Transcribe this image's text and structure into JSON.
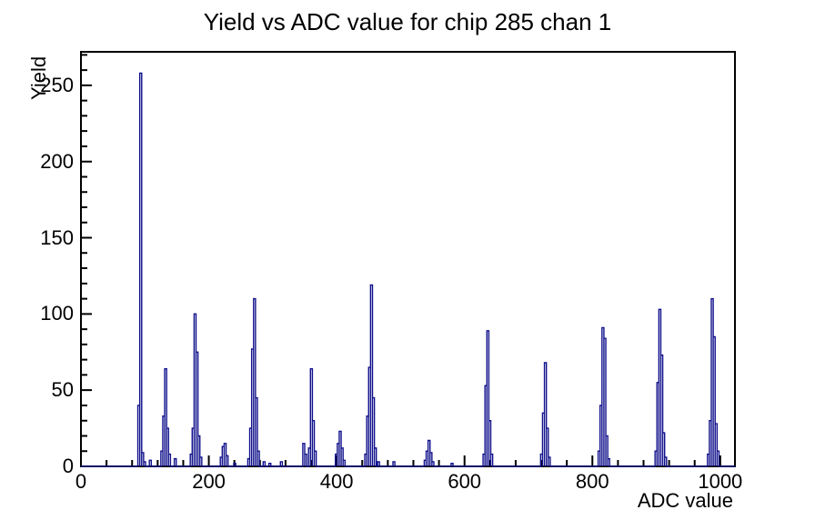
{
  "chart_data": {
    "type": "bar",
    "style": "root-step-histogram",
    "title": "Yield vs ADC value for chip 285 chan 1",
    "xlabel": "ADC value",
    "ylabel": "Yield",
    "xlim": [
      0,
      1023
    ],
    "ylim": [
      0,
      272
    ],
    "grid": false,
    "legend": "none",
    "x_major_ticks": [
      {
        "v": 0,
        "label": "0"
      },
      {
        "v": 200,
        "label": "200"
      },
      {
        "v": 400,
        "label": "400"
      },
      {
        "v": 600,
        "label": "600"
      },
      {
        "v": 800,
        "label": "800"
      },
      {
        "v": 1000,
        "label": "1000"
      }
    ],
    "x_minor_step": 40,
    "y_major_ticks": [
      {
        "v": 0,
        "label": "0"
      },
      {
        "v": 50,
        "label": "50"
      },
      {
        "v": 100,
        "label": "100"
      },
      {
        "v": 150,
        "label": "150"
      },
      {
        "v": 200,
        "label": "200"
      },
      {
        "v": 250,
        "label": "250"
      }
    ],
    "y_minor_step": 10,
    "bin_width": 3,
    "line_color": "#10108c",
    "frame_color": "#000000",
    "background": "#ffffff",
    "points": [
      [
        89,
        40
      ],
      [
        92,
        258
      ],
      [
        95,
        9
      ],
      [
        98,
        3
      ],
      [
        107,
        4
      ],
      [
        125,
        10
      ],
      [
        128,
        33
      ],
      [
        131,
        64
      ],
      [
        134,
        25
      ],
      [
        137,
        8
      ],
      [
        146,
        5
      ],
      [
        171,
        8
      ],
      [
        174,
        25
      ],
      [
        177,
        100
      ],
      [
        180,
        75
      ],
      [
        183,
        20
      ],
      [
        186,
        6
      ],
      [
        218,
        6
      ],
      [
        221,
        13
      ],
      [
        224,
        15
      ],
      [
        227,
        7
      ],
      [
        239,
        2
      ],
      [
        261,
        5
      ],
      [
        264,
        25
      ],
      [
        267,
        77
      ],
      [
        270,
        110
      ],
      [
        273,
        45
      ],
      [
        276,
        10
      ],
      [
        285,
        3
      ],
      [
        294,
        2
      ],
      [
        312,
        3
      ],
      [
        347,
        15
      ],
      [
        350,
        8
      ],
      [
        356,
        12
      ],
      [
        359,
        64
      ],
      [
        362,
        30
      ],
      [
        365,
        10
      ],
      [
        398,
        8
      ],
      [
        401,
        15
      ],
      [
        404,
        23
      ],
      [
        407,
        12
      ],
      [
        410,
        4
      ],
      [
        444,
        8
      ],
      [
        447,
        33
      ],
      [
        450,
        65
      ],
      [
        453,
        119
      ],
      [
        456,
        45
      ],
      [
        459,
        12
      ],
      [
        464,
        3
      ],
      [
        488,
        3
      ],
      [
        537,
        4
      ],
      [
        540,
        10
      ],
      [
        543,
        17
      ],
      [
        546,
        9
      ],
      [
        549,
        3
      ],
      [
        579,
        2
      ],
      [
        629,
        8
      ],
      [
        632,
        53
      ],
      [
        635,
        89
      ],
      [
        638,
        30
      ],
      [
        641,
        8
      ],
      [
        719,
        8
      ],
      [
        722,
        35
      ],
      [
        725,
        68
      ],
      [
        728,
        25
      ],
      [
        731,
        6
      ],
      [
        809,
        10
      ],
      [
        812,
        40
      ],
      [
        815,
        91
      ],
      [
        818,
        84
      ],
      [
        821,
        20
      ],
      [
        824,
        5
      ],
      [
        898,
        10
      ],
      [
        901,
        55
      ],
      [
        904,
        103
      ],
      [
        907,
        73
      ],
      [
        910,
        22
      ],
      [
        913,
        6
      ],
      [
        980,
        8
      ],
      [
        983,
        30
      ],
      [
        986,
        110
      ],
      [
        989,
        85
      ],
      [
        992,
        28
      ],
      [
        995,
        10
      ]
    ]
  }
}
